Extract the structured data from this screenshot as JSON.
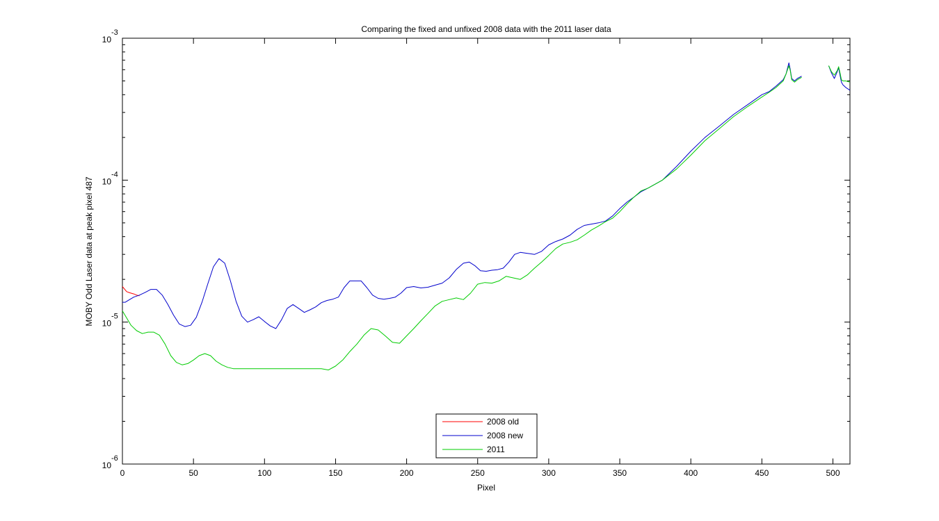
{
  "chart_data": {
    "type": "line",
    "title": "Comparing the fixed and unfixed 2008 data with the 2011 laser data",
    "xlabel": "Pixel",
    "ylabel": "MOBY Odd Laser data at peak pixel 487",
    "xlim": [
      0,
      512
    ],
    "ylim": [
      1e-06,
      0.001
    ],
    "yscale": "log",
    "grid": false,
    "legend_position": "bottom-center",
    "x_ticks": [
      0,
      50,
      100,
      150,
      200,
      250,
      300,
      350,
      400,
      450,
      500
    ],
    "x_tick_labels": [
      "0",
      "50",
      "100",
      "150",
      "200",
      "250",
      "300",
      "350",
      "400",
      "450",
      "500"
    ],
    "y_ticks": [
      1e-06,
      1e-05,
      0.0001,
      0.001
    ],
    "y_tick_bases": [
      "10",
      "10",
      "10",
      "10"
    ],
    "y_tick_exponents": [
      "-6",
      "-5",
      "-4",
      "-3"
    ],
    "series": [
      {
        "name": "2008 old",
        "color": "#ff0000",
        "x": [
          0,
          3,
          5,
          8,
          10,
          12
        ],
        "y": [
          1.78e-05,
          1.64e-05,
          1.61e-05,
          1.58e-05,
          1.55e-05,
          1.53e-05
        ]
      },
      {
        "name": "2008 new",
        "color": "#0000cc",
        "segments": [
          {
            "x": [
              0,
              2,
              5,
              8,
              12,
              16,
              20,
              24,
              28,
              32,
              36,
              40,
              44,
              48,
              52,
              56,
              60,
              64,
              68,
              72,
              76,
              80,
              84,
              88,
              92,
              96,
              100,
              104,
              108,
              112,
              116,
              120,
              124,
              128,
              132,
              136,
              140,
              144,
              148,
              152,
              156,
              160,
              164,
              168,
              172,
              176,
              180,
              184,
              188,
              192,
              196,
              200,
              205,
              210,
              215,
              220,
              225,
              230,
              235,
              240,
              244,
              248,
              252,
              256,
              260,
              264,
              268,
              272,
              276,
              280,
              285,
              290,
              295,
              300,
              305,
              310,
              315,
              320,
              325,
              330,
              335,
              340,
              345,
              350,
              355,
              360,
              365,
              370,
              380,
              390,
              400,
              410,
              420,
              430,
              440,
              450,
              455,
              460,
              465,
              467,
              469,
              470,
              471,
              473,
              475,
              478
            ],
            "y": [
              1.38e-05,
              1.38e-05,
              1.44e-05,
              1.5e-05,
              1.55e-05,
              1.62e-05,
              1.7e-05,
              1.7e-05,
              1.55e-05,
              1.33e-05,
              1.12e-05,
              9.7e-06,
              9.3e-06,
              9.5e-06,
              1.08e-05,
              1.38e-05,
              1.85e-05,
              2.45e-05,
              2.8e-05,
              2.6e-05,
              1.95e-05,
              1.4e-05,
              1.1e-05,
              1e-05,
              1.04e-05,
              1.09e-05,
              1.01e-05,
              9.4e-06,
              9e-06,
              1.04e-05,
              1.25e-05,
              1.33e-05,
              1.25e-05,
              1.17e-05,
              1.22e-05,
              1.28e-05,
              1.37e-05,
              1.42e-05,
              1.45e-05,
              1.5e-05,
              1.75e-05,
              1.95e-05,
              1.95e-05,
              1.95e-05,
              1.75e-05,
              1.55e-05,
              1.47e-05,
              1.45e-05,
              1.47e-05,
              1.5e-05,
              1.6e-05,
              1.75e-05,
              1.78e-05,
              1.74e-05,
              1.76e-05,
              1.82e-05,
              1.88e-05,
              2.05e-05,
              2.35e-05,
              2.6e-05,
              2.65e-05,
              2.5e-05,
              2.3e-05,
              2.28e-05,
              2.32e-05,
              2.34e-05,
              2.4e-05,
              2.65e-05,
              3e-05,
              3.1e-05,
              3.05e-05,
              3e-05,
              3.15e-05,
              3.5e-05,
              3.7e-05,
              3.85e-05,
              4.1e-05,
              4.5e-05,
              4.8e-05,
              4.9e-05,
              5e-05,
              5.15e-05,
              5.6e-05,
              6.3e-05,
              7e-05,
              7.6e-05,
              8.3e-05,
              8.8e-05,
              0.0001,
              0.000125,
              0.00016,
              0.0002,
              0.00024,
              0.00029,
              0.00034,
              0.0004,
              0.00042,
              0.00046,
              0.00051,
              0.00056,
              0.00067,
              0.0006,
              0.00052,
              0.0005,
              0.00052,
              0.00054
            ]
          },
          {
            "x": [
              497,
              499,
              501,
              503,
              504,
              505,
              506,
              507,
              509,
              512
            ],
            "y": [
              0.00064,
              0.00057,
              0.00052,
              0.00058,
              0.00062,
              0.00055,
              0.00049,
              0.00047,
              0.00045,
              0.00043
            ]
          }
        ]
      },
      {
        "name": "2011",
        "color": "#00cc00",
        "segments": [
          {
            "x": [
              0,
              3,
              6,
              10,
              14,
              18,
              22,
              26,
              30,
              34,
              38,
              42,
              46,
              50,
              54,
              58,
              62,
              66,
              70,
              74,
              78,
              82,
              90,
              100,
              110,
              120,
              130,
              140,
              145,
              150,
              155,
              160,
              165,
              170,
              175,
              180,
              185,
              190,
              195,
              200,
              205,
              210,
              215,
              220,
              225,
              230,
              235,
              240,
              245,
              250,
              255,
              260,
              265,
              270,
              275,
              280,
              285,
              290,
              295,
              300,
              305,
              310,
              315,
              320,
              325,
              330,
              335,
              340,
              345,
              350,
              355,
              360,
              365,
              370,
              380,
              390,
              400,
              410,
              420,
              430,
              440,
              450,
              455,
              460,
              465,
              467,
              469,
              470,
              471,
              473,
              475,
              478
            ],
            "y": [
              1.2e-05,
              1.07e-05,
              9.5e-06,
              8.7e-06,
              8.3e-06,
              8.5e-06,
              8.5e-06,
              8.1e-06,
              7e-06,
              5.8e-06,
              5.2e-06,
              5e-06,
              5.1e-06,
              5.4e-06,
              5.8e-06,
              6e-06,
              5.8e-06,
              5.3e-06,
              5e-06,
              4.8e-06,
              4.7e-06,
              4.7e-06,
              4.7e-06,
              4.7e-06,
              4.7e-06,
              4.7e-06,
              4.7e-06,
              4.7e-06,
              4.6e-06,
              4.9e-06,
              5.4e-06,
              6.2e-06,
              7e-06,
              8.1e-06,
              9e-06,
              8.8e-06,
              8e-06,
              7.2e-06,
              7.1e-06,
              8e-06,
              9e-06,
              1.02e-05,
              1.15e-05,
              1.3e-05,
              1.4e-05,
              1.44e-05,
              1.48e-05,
              1.44e-05,
              1.6e-05,
              1.85e-05,
              1.9e-05,
              1.88e-05,
              1.95e-05,
              2.1e-05,
              2.05e-05,
              2e-05,
              2.15e-05,
              2.4e-05,
              2.65e-05,
              2.95e-05,
              3.3e-05,
              3.55e-05,
              3.65e-05,
              3.8e-05,
              4.1e-05,
              4.45e-05,
              4.75e-05,
              5.1e-05,
              5.4e-05,
              6e-05,
              6.8e-05,
              7.6e-05,
              8.4e-05,
              8.8e-05,
              0.0001,
              0.00012,
              0.00015,
              0.00019,
              0.00023,
              0.00028,
              0.00033,
              0.000385,
              0.000415,
              0.00045,
              0.0005,
              0.00056,
              0.00064,
              0.00059,
              0.00051,
              0.00049,
              0.00051,
              0.00053
            ]
          },
          {
            "x": [
              497,
              499,
              501,
              503,
              504,
              505,
              506,
              507,
              509,
              512
            ],
            "y": [
              0.00064,
              0.00058,
              0.00055,
              0.00059,
              0.00063,
              0.00057,
              0.00051,
              0.0005,
              0.0005,
              0.00049
            ]
          }
        ]
      }
    ]
  }
}
